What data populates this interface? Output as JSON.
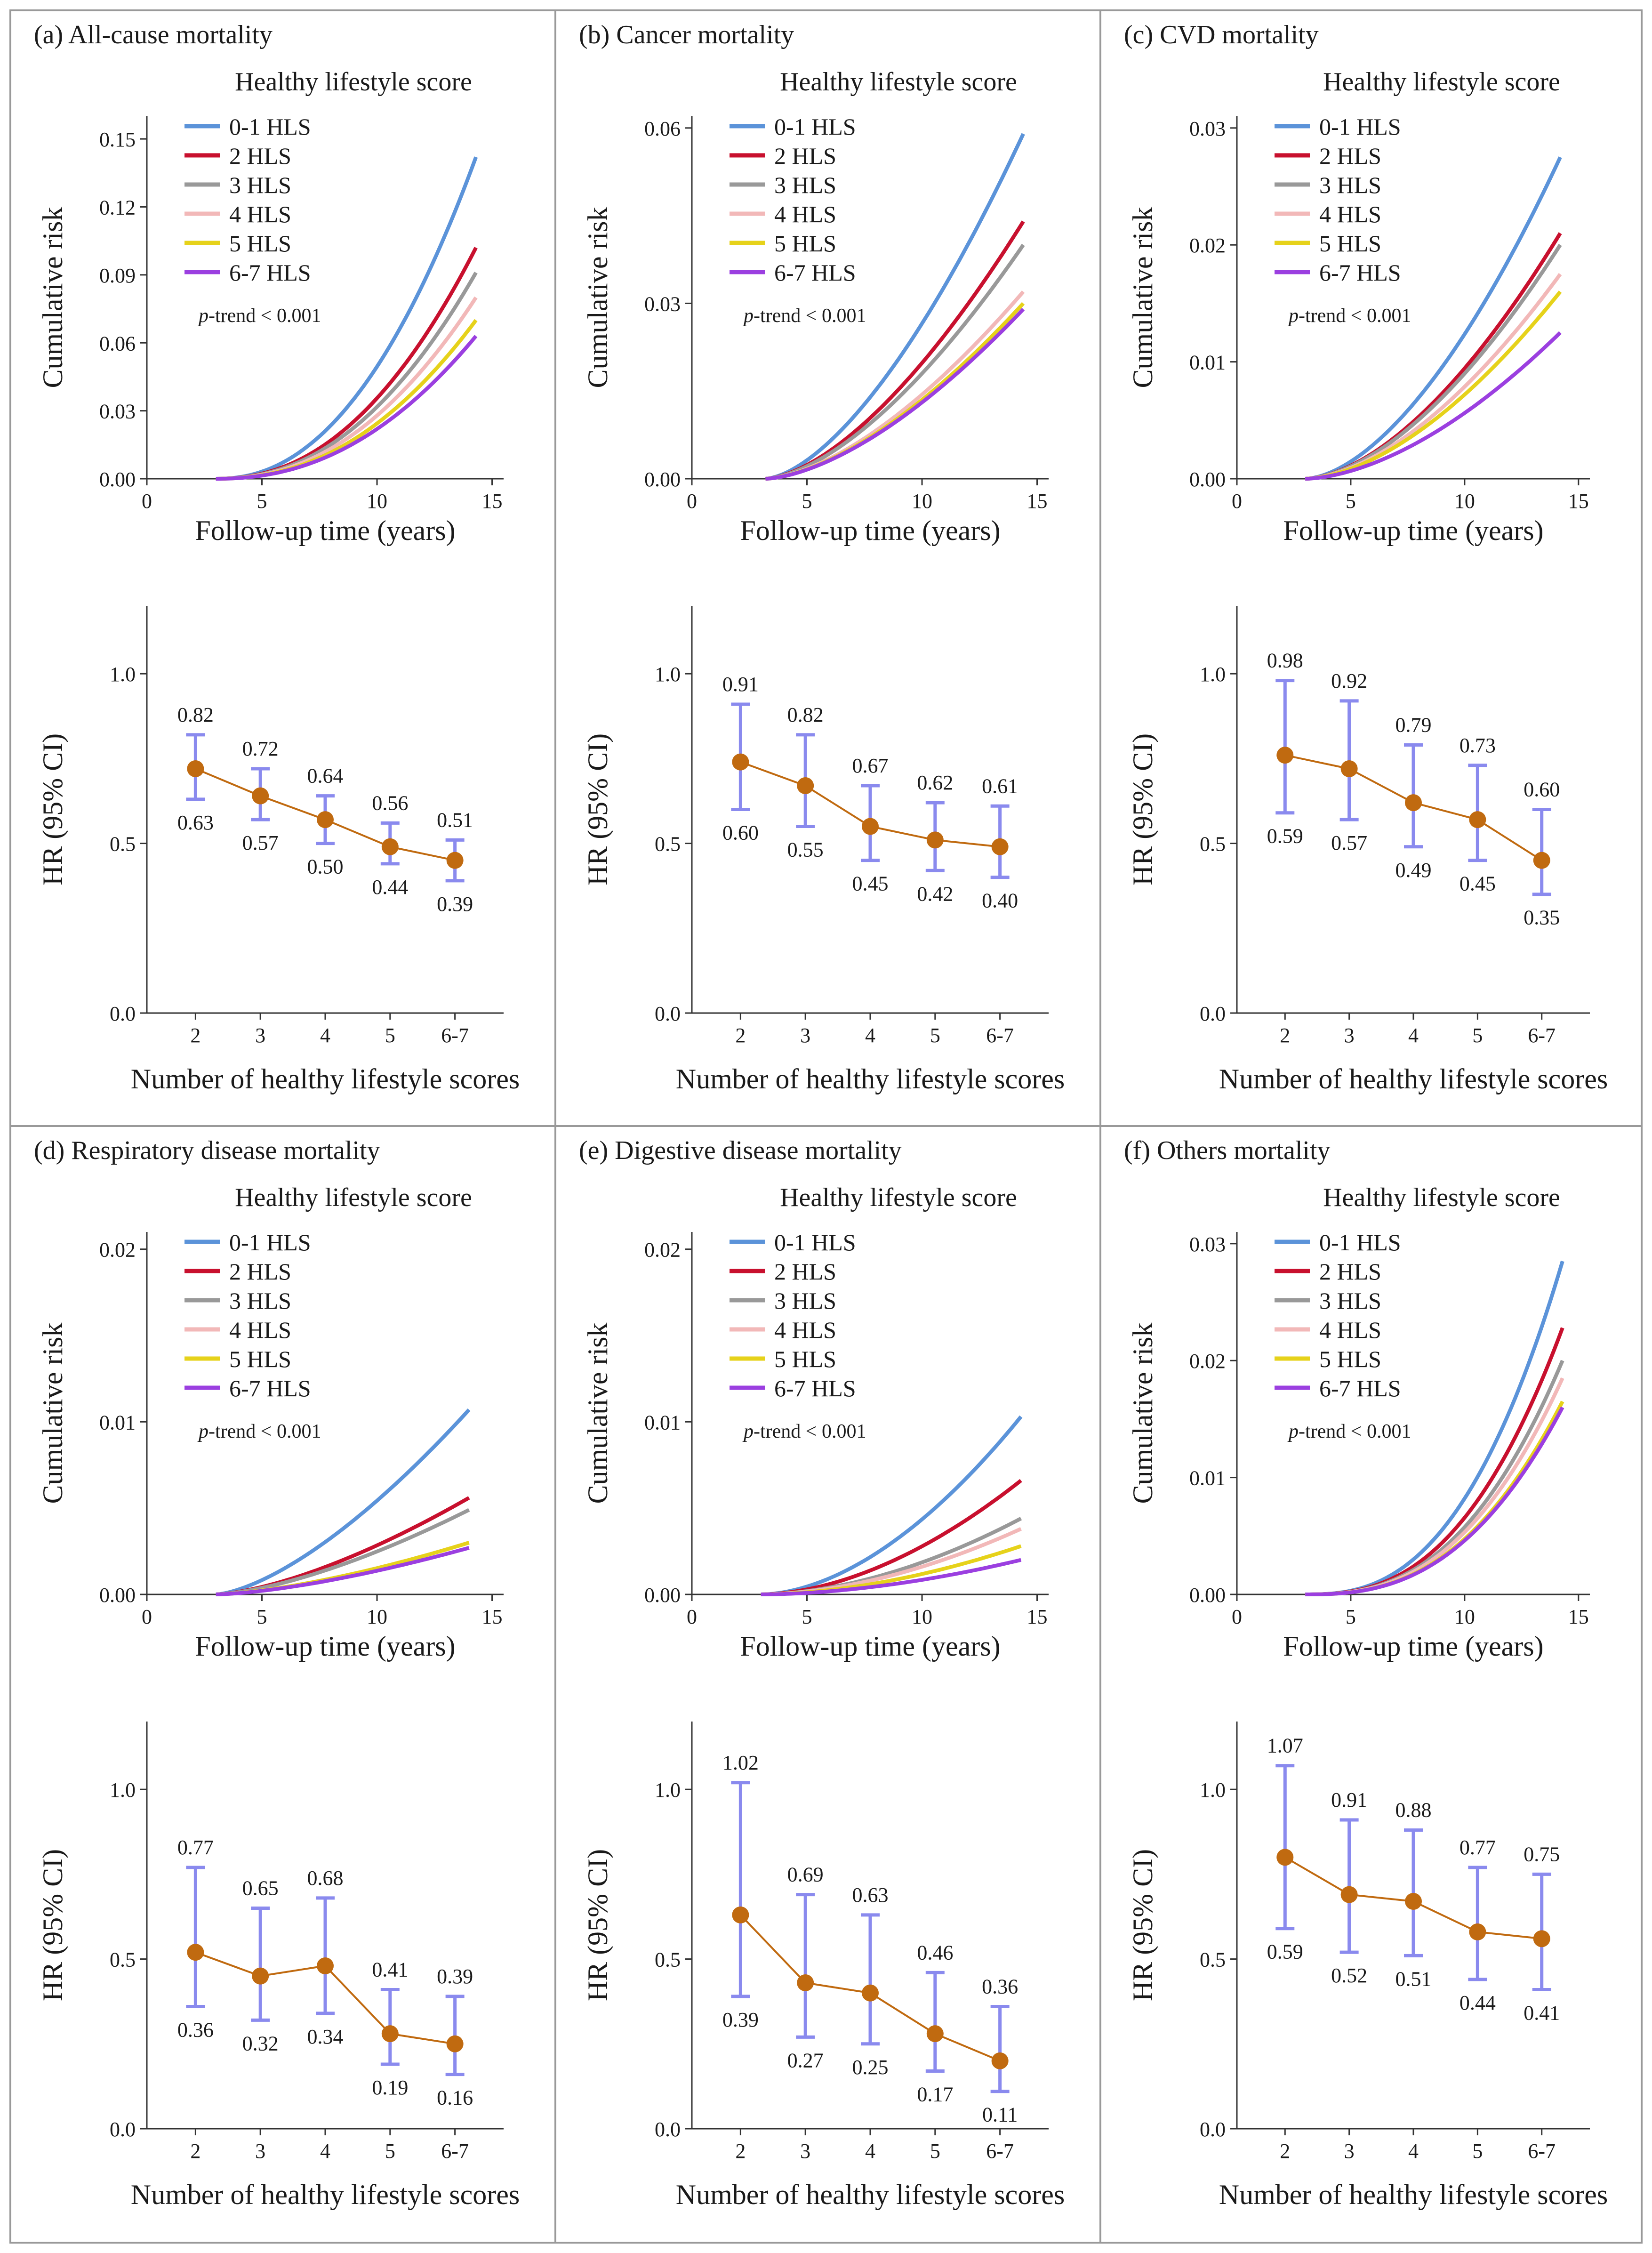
{
  "colors": {
    "hls_0_1": "#5b93d9",
    "hls_2": "#c8102e",
    "hls_3": "#999999",
    "hls_4": "#f2b8b8",
    "hls_5": "#e6d21a",
    "hls_6_7": "#9b3fe0",
    "ci_bar": "#8a8aee",
    "point": "#c06a10",
    "frame": "#999999"
  },
  "chart_data": [
    {
      "id": "a",
      "title": "(a) All-cause mortality",
      "km": {
        "type": "line",
        "legend_title": "Healthy lifestyle score",
        "xlabel": "Follow-up time (years)",
        "ylabel": "Cumulative risk",
        "xlim": [
          0,
          15.5
        ],
        "ylim": [
          0,
          0.16
        ],
        "xticks": [
          0,
          5,
          10,
          15
        ],
        "xtick_labels": [
          "0",
          "5",
          "10",
          "15"
        ],
        "yticks": [
          0,
          0.03,
          0.06,
          0.09,
          0.12,
          0.15
        ],
        "ytick_labels": [
          "0.00",
          "0.03",
          "0.06",
          "0.09",
          "0.12",
          "0.15"
        ],
        "ptrend": "< 0.001",
        "start": 3.0,
        "end": 14.3,
        "curve": 2.2,
        "series": [
          {
            "name": "0-1 HLS",
            "color": "#5b93d9",
            "final": 0.142
          },
          {
            "name": "2 HLS",
            "color": "#c8102e",
            "final": 0.102
          },
          {
            "name": "3 HLS",
            "color": "#999999",
            "final": 0.091
          },
          {
            "name": "4 HLS",
            "color": "#f2b8b8",
            "final": 0.08
          },
          {
            "name": "5 HLS",
            "color": "#e6d21a",
            "final": 0.07
          },
          {
            "name": "6-7 HLS",
            "color": "#9b3fe0",
            "final": 0.063
          }
        ]
      },
      "hr": {
        "type": "scatter",
        "xlabel": "Number of healthy lifestyle scores",
        "ylabel": "HR (95% CI)",
        "ylim": [
          0,
          1.2
        ],
        "yticks": [
          0,
          0.5,
          1.0
        ],
        "ytick_labels": [
          "0.0",
          "0.5",
          "1.0"
        ],
        "categories": [
          "2",
          "3",
          "4",
          "5",
          "6-7"
        ],
        "hr": [
          0.72,
          0.64,
          0.57,
          0.49,
          0.45
        ],
        "upper": [
          0.82,
          0.72,
          0.64,
          0.56,
          0.51
        ],
        "lower": [
          0.63,
          0.57,
          0.5,
          0.44,
          0.39
        ],
        "upper_labels": [
          "0.82",
          "0.72",
          "0.64",
          "0.56",
          "0.51"
        ],
        "lower_labels": [
          "0.63",
          "0.57",
          "0.50",
          "0.44",
          "0.39"
        ]
      }
    },
    {
      "id": "b",
      "title": "(b) Cancer mortality",
      "km": {
        "type": "line",
        "legend_title": "Healthy lifestyle score",
        "xlabel": "Follow-up time (years)",
        "ylabel": "Cumulative risk",
        "xlim": [
          0,
          15.5
        ],
        "ylim": [
          0,
          0.062
        ],
        "xticks": [
          0,
          5,
          10,
          15
        ],
        "xtick_labels": [
          "0",
          "5",
          "10",
          "15"
        ],
        "yticks": [
          0,
          0.03,
          0.06
        ],
        "ytick_labels": [
          "0.00",
          "0.03",
          "0.06"
        ],
        "ptrend": "< 0.001",
        "start": 3.2,
        "end": 14.4,
        "curve": 1.6,
        "series": [
          {
            "name": "0-1 HLS",
            "color": "#5b93d9",
            "final": 0.059
          },
          {
            "name": "2 HLS",
            "color": "#c8102e",
            "final": 0.044
          },
          {
            "name": "3 HLS",
            "color": "#999999",
            "final": 0.04
          },
          {
            "name": "4 HLS",
            "color": "#f2b8b8",
            "final": 0.032
          },
          {
            "name": "5 HLS",
            "color": "#e6d21a",
            "final": 0.03
          },
          {
            "name": "6-7 HLS",
            "color": "#9b3fe0",
            "final": 0.029
          }
        ]
      },
      "hr": {
        "type": "scatter",
        "xlabel": "Number of healthy lifestyle scores",
        "ylabel": "HR (95% CI)",
        "ylim": [
          0,
          1.2
        ],
        "yticks": [
          0,
          0.5,
          1.0
        ],
        "ytick_labels": [
          "0.0",
          "0.5",
          "1.0"
        ],
        "categories": [
          "2",
          "3",
          "4",
          "5",
          "6-7"
        ],
        "hr": [
          0.74,
          0.67,
          0.55,
          0.51,
          0.49
        ],
        "upper": [
          0.91,
          0.82,
          0.67,
          0.62,
          0.61
        ],
        "lower": [
          0.6,
          0.55,
          0.45,
          0.42,
          0.4
        ],
        "upper_labels": [
          "0.91",
          "0.82",
          "0.67",
          "0.62",
          "0.61"
        ],
        "lower_labels": [
          "0.60",
          "0.55",
          "0.45",
          "0.42",
          "0.40"
        ]
      }
    },
    {
      "id": "c",
      "title": "(c) CVD mortality",
      "km": {
        "type": "line",
        "legend_title": "Healthy lifestyle score",
        "xlabel": "Follow-up time (years)",
        "ylabel": "Cumulative risk",
        "xlim": [
          0,
          15.5
        ],
        "ylim": [
          0,
          0.031
        ],
        "xticks": [
          0,
          5,
          10,
          15
        ],
        "xtick_labels": [
          "0",
          "5",
          "10",
          "15"
        ],
        "yticks": [
          0,
          0.01,
          0.02,
          0.03
        ],
        "ytick_labels": [
          "0.00",
          "0.01",
          "0.02",
          "0.03"
        ],
        "ptrend": "< 0.001",
        "start": 3.0,
        "end": 14.2,
        "curve": 1.7,
        "series": [
          {
            "name": "0-1 HLS",
            "color": "#5b93d9",
            "final": 0.0275
          },
          {
            "name": "2 HLS",
            "color": "#c8102e",
            "final": 0.021
          },
          {
            "name": "3 HLS",
            "color": "#999999",
            "final": 0.02
          },
          {
            "name": "4 HLS",
            "color": "#f2b8b8",
            "final": 0.0175
          },
          {
            "name": "5 HLS",
            "color": "#e6d21a",
            "final": 0.016
          },
          {
            "name": "6-7 HLS",
            "color": "#9b3fe0",
            "final": 0.0125
          }
        ]
      },
      "hr": {
        "type": "scatter",
        "xlabel": "Number of healthy lifestyle scores",
        "ylabel": "HR (95% CI)",
        "ylim": [
          0,
          1.2
        ],
        "yticks": [
          0,
          0.5,
          1.0
        ],
        "ytick_labels": [
          "0.0",
          "0.5",
          "1.0"
        ],
        "categories": [
          "2",
          "3",
          "4",
          "5",
          "6-7"
        ],
        "hr": [
          0.76,
          0.72,
          0.62,
          0.57,
          0.45
        ],
        "upper": [
          0.98,
          0.92,
          0.79,
          0.73,
          0.6
        ],
        "lower": [
          0.59,
          0.57,
          0.49,
          0.45,
          0.35
        ],
        "upper_labels": [
          "0.98",
          "0.92",
          "0.79",
          "0.73",
          "0.60"
        ],
        "lower_labels": [
          "0.59",
          "0.57",
          "0.49",
          "0.45",
          "0.35"
        ]
      }
    },
    {
      "id": "d",
      "title": "(d) Respiratory disease mortality",
      "km": {
        "type": "line",
        "legend_title": "Healthy lifestyle score",
        "xlabel": "Follow-up time (years)",
        "ylabel": "Cumulative risk",
        "xlim": [
          0,
          15.5
        ],
        "ylim": [
          0,
          0.021
        ],
        "xticks": [
          0,
          5,
          10,
          15
        ],
        "xtick_labels": [
          "0",
          "5",
          "10",
          "15"
        ],
        "yticks": [
          0,
          0.01,
          0.02
        ],
        "ytick_labels": [
          "0.00",
          "0.01",
          "0.02"
        ],
        "ptrend": "< 0.001",
        "start": 3.0,
        "end": 14.0,
        "curve": 1.5,
        "series": [
          {
            "name": "0-1 HLS",
            "color": "#5b93d9",
            "final": 0.0107
          },
          {
            "name": "2 HLS",
            "color": "#c8102e",
            "final": 0.0056
          },
          {
            "name": "3 HLS",
            "color": "#999999",
            "final": 0.0049
          },
          {
            "name": "4 HLS",
            "color": "#f2b8b8",
            "final": 0.003
          },
          {
            "name": "5 HLS",
            "color": "#e6d21a",
            "final": 0.003
          },
          {
            "name": "6-7 HLS",
            "color": "#9b3fe0",
            "final": 0.0027
          }
        ]
      },
      "hr": {
        "type": "scatter",
        "xlabel": "Number of healthy lifestyle scores",
        "ylabel": "HR (95% CI)",
        "ylim": [
          0,
          1.2
        ],
        "yticks": [
          0,
          0.5,
          1.0
        ],
        "ytick_labels": [
          "0.0",
          "0.5",
          "1.0"
        ],
        "categories": [
          "2",
          "3",
          "4",
          "5",
          "6-7"
        ],
        "hr": [
          0.52,
          0.45,
          0.48,
          0.28,
          0.25
        ],
        "upper": [
          0.77,
          0.65,
          0.68,
          0.41,
          0.39
        ],
        "lower": [
          0.36,
          0.32,
          0.34,
          0.19,
          0.16
        ],
        "upper_labels": [
          "0.77",
          "0.65",
          "0.68",
          "0.41",
          "0.39"
        ],
        "lower_labels": [
          "0.36",
          "0.32",
          "0.34",
          "0.19",
          "0.16"
        ]
      }
    },
    {
      "id": "e",
      "title": "(e) Digestive disease mortality",
      "km": {
        "type": "line",
        "legend_title": "Healthy lifestyle score",
        "xlabel": "Follow-up time (years)",
        "ylabel": "Cumulative risk",
        "xlim": [
          0,
          15.5
        ],
        "ylim": [
          0,
          0.021
        ],
        "xticks": [
          0,
          5,
          10,
          15
        ],
        "xtick_labels": [
          "0",
          "5",
          "10",
          "15"
        ],
        "yticks": [
          0,
          0.01,
          0.02
        ],
        "ytick_labels": [
          "0.00",
          "0.01",
          "0.02"
        ],
        "ptrend": "< 0.001",
        "start": 3.0,
        "end": 14.3,
        "curve": 1.8,
        "series": [
          {
            "name": "0-1 HLS",
            "color": "#5b93d9",
            "final": 0.0103
          },
          {
            "name": "2 HLS",
            "color": "#c8102e",
            "final": 0.0066
          },
          {
            "name": "3 HLS",
            "color": "#999999",
            "final": 0.0044
          },
          {
            "name": "4 HLS",
            "color": "#f2b8b8",
            "final": 0.0038
          },
          {
            "name": "5 HLS",
            "color": "#e6d21a",
            "final": 0.0028
          },
          {
            "name": "6-7 HLS",
            "color": "#9b3fe0",
            "final": 0.002
          }
        ]
      },
      "hr": {
        "type": "scatter",
        "xlabel": "Number of healthy lifestyle scores",
        "ylabel": "HR (95% CI)",
        "ylim": [
          0,
          1.2
        ],
        "yticks": [
          0,
          0.5,
          1.0
        ],
        "ytick_labels": [
          "0.0",
          "0.5",
          "1.0"
        ],
        "categories": [
          "2",
          "3",
          "4",
          "5",
          "6-7"
        ],
        "hr": [
          0.63,
          0.43,
          0.4,
          0.28,
          0.2
        ],
        "upper": [
          1.02,
          0.69,
          0.63,
          0.46,
          0.36
        ],
        "lower": [
          0.39,
          0.27,
          0.25,
          0.17,
          0.11
        ],
        "upper_labels": [
          "1.02",
          "0.69",
          "0.63",
          "0.46",
          "0.36"
        ],
        "lower_labels": [
          "0.39",
          "0.27",
          "0.25",
          "0.17",
          "0.11"
        ]
      }
    },
    {
      "id": "f",
      "title": "(f) Others mortality",
      "km": {
        "type": "line",
        "legend_title": "Healthy lifestyle score",
        "xlabel": "Follow-up time (years)",
        "ylabel": "Cumulative risk",
        "xlim": [
          0,
          15.5
        ],
        "ylim": [
          0,
          0.031
        ],
        "xticks": [
          0,
          5,
          10,
          15
        ],
        "xtick_labels": [
          "0",
          "5",
          "10",
          "15"
        ],
        "yticks": [
          0,
          0.01,
          0.02,
          0.03
        ],
        "ytick_labels": [
          "0.00",
          "0.01",
          "0.02",
          "0.03"
        ],
        "ptrend": "< 0.001",
        "start": 3.0,
        "end": 14.3,
        "curve": 2.6,
        "series": [
          {
            "name": "0-1 HLS",
            "color": "#5b93d9",
            "final": 0.0285
          },
          {
            "name": "2 HLS",
            "color": "#c8102e",
            "final": 0.0228
          },
          {
            "name": "3 HLS",
            "color": "#999999",
            "final": 0.02
          },
          {
            "name": "4 HLS",
            "color": "#f2b8b8",
            "final": 0.0185
          },
          {
            "name": "5 HLS",
            "color": "#e6d21a",
            "final": 0.0165
          },
          {
            "name": "6-7 HLS",
            "color": "#9b3fe0",
            "final": 0.016
          }
        ]
      },
      "hr": {
        "type": "scatter",
        "xlabel": "Number of healthy lifestyle scores",
        "ylabel": "HR (95% CI)",
        "ylim": [
          0,
          1.2
        ],
        "yticks": [
          0,
          0.5,
          1.0
        ],
        "ytick_labels": [
          "0.0",
          "0.5",
          "1.0"
        ],
        "categories": [
          "2",
          "3",
          "4",
          "5",
          "6-7"
        ],
        "hr": [
          0.8,
          0.69,
          0.67,
          0.58,
          0.56
        ],
        "upper": [
          1.07,
          0.91,
          0.88,
          0.77,
          0.75
        ],
        "lower": [
          0.59,
          0.52,
          0.51,
          0.44,
          0.41
        ],
        "upper_labels": [
          "1.07",
          "0.91",
          "0.88",
          "0.77",
          "0.75"
        ],
        "lower_labels": [
          "0.59",
          "0.52",
          "0.51",
          "0.44",
          "0.41"
        ]
      }
    }
  ]
}
